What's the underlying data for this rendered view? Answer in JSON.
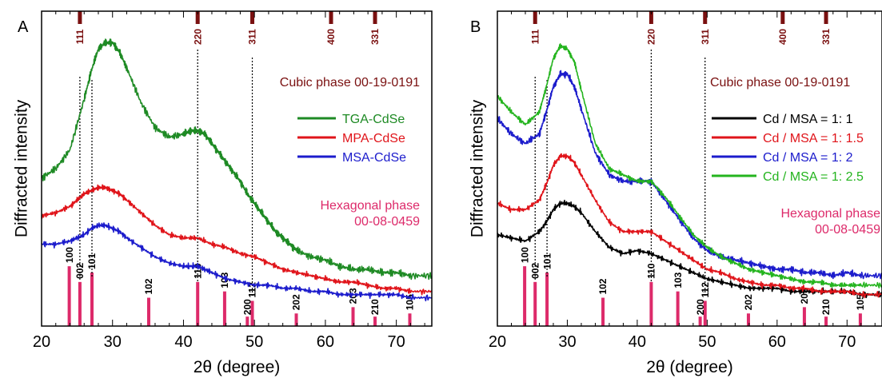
{
  "chart_data": [
    {
      "type": "line",
      "panel_label": "A",
      "xlabel": "2θ (degree)",
      "ylabel": "Diffracted intensity",
      "xlim": [
        20,
        75
      ],
      "xticks": [
        20,
        30,
        40,
        50,
        60,
        70
      ],
      "grid": false,
      "legend_position": "right",
      "series": [
        {
          "name": "TGA-CdSe",
          "color": "#1e8a24",
          "x": [
            20,
            22,
            24,
            26,
            27,
            28,
            29,
            30,
            31,
            32,
            34,
            36,
            38,
            40,
            41,
            42,
            43,
            44,
            45,
            46,
            47,
            48,
            49,
            50,
            51,
            52,
            53,
            54,
            55,
            56,
            58,
            60,
            62,
            64,
            66,
            68,
            70,
            72,
            75
          ],
          "y": [
            0.47,
            0.5,
            0.56,
            0.72,
            0.81,
            0.88,
            0.9,
            0.9,
            0.87,
            0.82,
            0.71,
            0.63,
            0.6,
            0.61,
            0.62,
            0.62,
            0.61,
            0.58,
            0.55,
            0.52,
            0.49,
            0.46,
            0.42,
            0.39,
            0.36,
            0.33,
            0.3,
            0.28,
            0.26,
            0.24,
            0.22,
            0.21,
            0.19,
            0.18,
            0.18,
            0.17,
            0.17,
            0.16,
            0.16
          ]
        },
        {
          "name": "MPA-CdSe",
          "color": "#e0141a",
          "x": [
            20,
            22,
            24,
            25,
            26,
            27,
            28,
            29,
            30,
            31,
            32,
            34,
            36,
            38,
            40,
            42,
            44,
            46,
            48,
            50,
            52,
            54,
            56,
            58,
            60,
            62,
            64,
            66,
            68,
            70,
            72,
            75
          ],
          "y": [
            0.35,
            0.36,
            0.38,
            0.4,
            0.42,
            0.43,
            0.44,
            0.44,
            0.43,
            0.42,
            0.4,
            0.36,
            0.32,
            0.29,
            0.28,
            0.28,
            0.26,
            0.25,
            0.23,
            0.22,
            0.2,
            0.18,
            0.17,
            0.16,
            0.15,
            0.14,
            0.14,
            0.13,
            0.12,
            0.12,
            0.11,
            0.11
          ]
        },
        {
          "name": "MSA-CdSe",
          "color": "#1c1ccc",
          "x": [
            20,
            22,
            24,
            25,
            26,
            27,
            28,
            29,
            30,
            31,
            32,
            34,
            36,
            38,
            40,
            41,
            42,
            43,
            44,
            46,
            48,
            50,
            52,
            54,
            56,
            58,
            60,
            62,
            64,
            66,
            68,
            70,
            72,
            75
          ],
          "y": [
            0.26,
            0.26,
            0.27,
            0.28,
            0.29,
            0.31,
            0.32,
            0.32,
            0.31,
            0.3,
            0.28,
            0.25,
            0.22,
            0.2,
            0.19,
            0.19,
            0.19,
            0.18,
            0.17,
            0.15,
            0.14,
            0.13,
            0.13,
            0.12,
            0.12,
            0.11,
            0.11,
            0.1,
            0.1,
            0.1,
            0.1,
            0.1,
            0.09,
            0.09
          ]
        }
      ],
      "reference_sets": [
        {
          "label": "Cubic phase 00-19-0191",
          "color": "#7a1010",
          "peaks": [
            {
              "x": 25.4,
              "label": "111"
            },
            {
              "x": 42.0,
              "label": "220"
            },
            {
              "x": 49.7,
              "label": "311"
            },
            {
              "x": 60.8,
              "label": "400"
            },
            {
              "x": 67.0,
              "label": "331"
            }
          ]
        },
        {
          "label_line1": "Hexagonal phase",
          "label_line2": "00-08-0459",
          "color": "#dd2a6a",
          "peaks": [
            {
              "x": 23.9,
              "label": "100",
              "h": 0.19
            },
            {
              "x": 25.4,
              "label": "002",
              "h": 0.14
            },
            {
              "x": 27.1,
              "label": "101",
              "h": 0.17
            },
            {
              "x": 35.1,
              "label": "102",
              "h": 0.09
            },
            {
              "x": 42.0,
              "label": "110",
              "h": 0.14
            },
            {
              "x": 45.8,
              "label": "103",
              "h": 0.11
            },
            {
              "x": 49.7,
              "label": "112",
              "h": 0.08
            },
            {
              "x": 49.0,
              "label": "200",
              "h": 0.03
            },
            {
              "x": 55.9,
              "label": "202",
              "h": 0.04
            },
            {
              "x": 63.9,
              "label": "203",
              "h": 0.06
            },
            {
              "x": 67.0,
              "label": "210",
              "h": 0.03
            },
            {
              "x": 71.9,
              "label": "105",
              "h": 0.04
            }
          ]
        }
      ],
      "annotations": [
        "111",
        "220",
        "311",
        "400",
        "331",
        "100",
        "002",
        "101",
        "102",
        "110",
        "103",
        "200",
        "112",
        "202",
        "203",
        "210",
        "105"
      ]
    },
    {
      "type": "line",
      "panel_label": "B",
      "xlabel": "2θ (degree)",
      "ylabel": "Diffracted intensity",
      "xlim": [
        20,
        75
      ],
      "xticks": [
        20,
        30,
        40,
        50,
        60,
        70
      ],
      "grid": false,
      "legend_position": "right",
      "series": [
        {
          "name": "Cd / MSA = 1: 1",
          "color": "#000000",
          "x": [
            20,
            22,
            24,
            26,
            27,
            28,
            29,
            30,
            31,
            32,
            34,
            36,
            38,
            40,
            42,
            44,
            46,
            48,
            50,
            52,
            54,
            56,
            58,
            60,
            62,
            64,
            66,
            68,
            70,
            72,
            75
          ],
          "y": [
            0.29,
            0.28,
            0.27,
            0.3,
            0.33,
            0.37,
            0.39,
            0.39,
            0.38,
            0.36,
            0.3,
            0.25,
            0.23,
            0.24,
            0.23,
            0.21,
            0.19,
            0.17,
            0.15,
            0.14,
            0.13,
            0.12,
            0.12,
            0.12,
            0.11,
            0.11,
            0.11,
            0.11,
            0.11,
            0.1,
            0.1
          ]
        },
        {
          "name": "Cd / MSA = 1: 1.5",
          "color": "#e0141a",
          "x": [
            20,
            22,
            24,
            26,
            27,
            28,
            29,
            30,
            31,
            32,
            34,
            36,
            38,
            40,
            42,
            44,
            46,
            48,
            50,
            52,
            54,
            56,
            58,
            60,
            62,
            64,
            66,
            68,
            70,
            72,
            75
          ],
          "y": [
            0.39,
            0.37,
            0.37,
            0.4,
            0.45,
            0.51,
            0.54,
            0.54,
            0.52,
            0.48,
            0.4,
            0.33,
            0.3,
            0.3,
            0.3,
            0.27,
            0.24,
            0.21,
            0.18,
            0.17,
            0.15,
            0.14,
            0.13,
            0.13,
            0.12,
            0.12,
            0.11,
            0.11,
            0.11,
            0.1,
            0.1
          ]
        },
        {
          "name": "Cd / MSA = 1: 2",
          "color": "#1c1ccc",
          "x": [
            20,
            22,
            24,
            26,
            27,
            28,
            29,
            30,
            31,
            32,
            34,
            36,
            38,
            40,
            42,
            44,
            46,
            48,
            50,
            52,
            54,
            56,
            58,
            60,
            62,
            64,
            66,
            68,
            70,
            72,
            75
          ],
          "y": [
            0.66,
            0.61,
            0.58,
            0.61,
            0.68,
            0.76,
            0.8,
            0.8,
            0.76,
            0.69,
            0.55,
            0.48,
            0.46,
            0.46,
            0.46,
            0.4,
            0.34,
            0.28,
            0.24,
            0.22,
            0.21,
            0.2,
            0.19,
            0.18,
            0.18,
            0.17,
            0.17,
            0.16,
            0.17,
            0.16,
            0.16
          ]
        },
        {
          "name": "Cd / MSA = 1: 2.5",
          "color": "#24b41e",
          "x": [
            20,
            22,
            24,
            26,
            27,
            28,
            29,
            30,
            31,
            32,
            34,
            36,
            38,
            40,
            42,
            44,
            46,
            48,
            50,
            52,
            54,
            56,
            58,
            60,
            62,
            64,
            66,
            68,
            70,
            72,
            75
          ],
          "y": [
            0.73,
            0.68,
            0.64,
            0.68,
            0.76,
            0.85,
            0.89,
            0.88,
            0.84,
            0.75,
            0.58,
            0.5,
            0.48,
            0.46,
            0.46,
            0.41,
            0.35,
            0.29,
            0.25,
            0.22,
            0.2,
            0.18,
            0.17,
            0.16,
            0.15,
            0.14,
            0.14,
            0.13,
            0.13,
            0.13,
            0.13
          ]
        }
      ],
      "reference_sets": [
        {
          "label": "Cubic phase 00-19-0191",
          "color": "#7a1010",
          "peaks": [
            {
              "x": 25.4,
              "label": "111"
            },
            {
              "x": 42.0,
              "label": "220"
            },
            {
              "x": 49.7,
              "label": "311"
            },
            {
              "x": 60.8,
              "label": "400"
            },
            {
              "x": 67.0,
              "label": "331"
            }
          ]
        },
        {
          "label_line1": "Hexagonal phase",
          "label_line2": "00-08-0459",
          "color": "#dd2a6a",
          "peaks": [
            {
              "x": 23.9,
              "label": "100",
              "h": 0.19
            },
            {
              "x": 25.4,
              "label": "002",
              "h": 0.14
            },
            {
              "x": 27.1,
              "label": "101",
              "h": 0.17
            },
            {
              "x": 35.1,
              "label": "102",
              "h": 0.09
            },
            {
              "x": 42.0,
              "label": "110",
              "h": 0.14
            },
            {
              "x": 45.8,
              "label": "103",
              "h": 0.11
            },
            {
              "x": 49.7,
              "label": "112",
              "h": 0.08
            },
            {
              "x": 49.0,
              "label": "200",
              "h": 0.03
            },
            {
              "x": 55.9,
              "label": "202",
              "h": 0.04
            },
            {
              "x": 63.9,
              "label": "203",
              "h": 0.06
            },
            {
              "x": 67.0,
              "label": "210",
              "h": 0.03
            },
            {
              "x": 71.9,
              "label": "105",
              "h": 0.04
            }
          ]
        }
      ],
      "annotations": [
        "111",
        "220",
        "311",
        "400",
        "331",
        "100",
        "002",
        "101",
        "102",
        "110",
        "103",
        "200",
        "112",
        "202",
        "203",
        "210",
        "105"
      ]
    }
  ]
}
